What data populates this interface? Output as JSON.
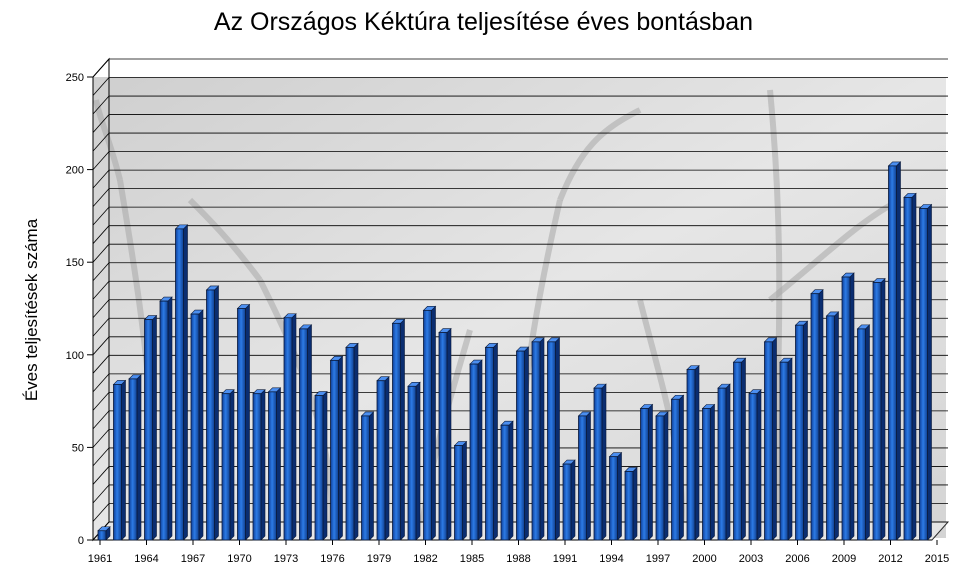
{
  "chart_data": {
    "type": "bar",
    "title": "Az Országos Kéktúra teljesítése éves bontásban",
    "xlabel": "",
    "ylabel": "Éves teljesítések száma",
    "ylim": [
      0,
      250
    ],
    "yticks": [
      0,
      50,
      100,
      150,
      200,
      250
    ],
    "grid": true,
    "bar_color": "#1f5fbf",
    "bar_edge_color": "#0a1a3a",
    "x_tick_labels": [
      "1961",
      "1964",
      "1967",
      "1970",
      "1973",
      "1976",
      "1979",
      "1982",
      "1985",
      "1988",
      "1991",
      "1994",
      "1997",
      "2000",
      "2003",
      "2006",
      "2009",
      "2012",
      "2015"
    ],
    "categories": [
      "1961",
      "1962",
      "1963",
      "1964",
      "1965",
      "1966",
      "1967",
      "1968",
      "1969",
      "1970",
      "1971",
      "1972",
      "1973",
      "1974",
      "1975",
      "1976",
      "1977",
      "1978",
      "1979",
      "1980",
      "1981",
      "1982",
      "1983",
      "1984",
      "1985",
      "1986",
      "1987",
      "1988",
      "1989",
      "1990",
      "1991",
      "1992",
      "1993",
      "1994",
      "1995",
      "1996",
      "1997",
      "1998",
      "1999",
      "2000",
      "2001",
      "2002",
      "2003",
      "2004",
      "2005",
      "2006",
      "2007",
      "2008",
      "2009",
      "2010",
      "2011",
      "2012",
      "2013",
      "2014"
    ],
    "values": [
      5,
      84,
      87,
      119,
      129,
      168,
      122,
      135,
      79,
      125,
      79,
      80,
      120,
      114,
      78,
      97,
      104,
      67,
      86,
      117,
      83,
      124,
      112,
      51,
      95,
      104,
      62,
      102,
      107,
      107,
      41,
      67,
      82,
      45,
      37,
      71,
      67,
      76,
      92,
      71,
      82,
      96,
      79,
      107,
      96,
      116,
      133,
      121,
      142,
      114,
      139,
      202,
      185,
      179
    ]
  }
}
